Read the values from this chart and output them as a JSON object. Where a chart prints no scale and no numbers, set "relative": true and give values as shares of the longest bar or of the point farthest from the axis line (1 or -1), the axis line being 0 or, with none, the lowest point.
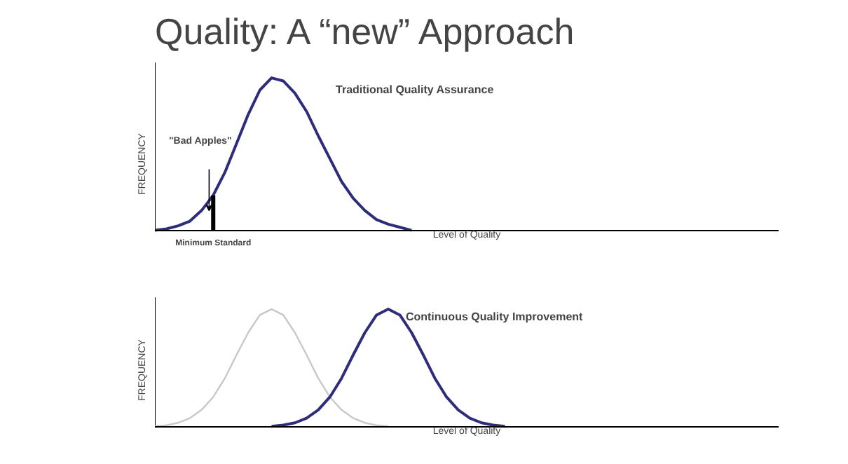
{
  "chart_data": [
    {
      "type": "line",
      "title": "Quality:  A “new” Approach",
      "xlabel": "Level of Quality",
      "ylabel": "FREQUENCY",
      "relative": true,
      "categories": [
        null,
        null,
        null,
        null,
        null,
        null,
        null,
        null,
        null,
        null,
        null,
        null,
        null,
        null,
        null,
        null,
        null,
        null,
        null,
        null,
        null,
        null,
        null,
        null,
        null,
        null,
        null,
        null,
        null,
        null,
        null,
        null,
        null,
        null
      ],
      "series": [
        {
          "color": "#2e2d7c",
          "values": [
            0,
            0.01,
            0.03,
            0.06,
            0.13,
            0.23,
            0.38,
            0.57,
            0.76,
            0.92,
            1,
            0.98,
            0.9,
            0.78,
            0.62,
            0.47,
            0.32,
            0.21,
            0.13,
            0.07,
            0.04,
            0.02,
            0,
            null,
            null,
            null,
            null,
            null,
            null,
            null,
            null,
            null,
            null,
            null
          ]
        }
      ],
      "annotations": [
        "Traditional Quality Assurance",
        "\"Bad Apples\"",
        "Minimum Standard"
      ]
    },
    {
      "type": "line",
      "xlabel": "Level of Quality",
      "ylabel": "FREQUENCY",
      "relative": true,
      "categories": [
        null,
        null,
        null,
        null,
        null,
        null,
        null,
        null,
        null,
        null,
        null,
        null,
        null,
        null,
        null,
        null,
        null,
        null,
        null,
        null,
        null,
        null,
        null,
        null,
        null,
        null,
        null,
        null,
        null,
        null,
        null,
        null,
        null,
        null
      ],
      "series": [
        {
          "color": "#c8c8c8",
          "values": [
            0,
            0.01,
            0.03,
            0.07,
            0.14,
            0.25,
            0.41,
            0.61,
            0.8,
            0.95,
            1,
            0.95,
            0.8,
            0.61,
            0.41,
            0.25,
            0.14,
            0.07,
            0.03,
            0.01,
            0,
            null,
            null,
            null,
            null,
            null,
            null,
            null,
            null,
            null,
            null,
            null,
            null,
            null
          ]
        },
        {
          "color": "#2e2d7c",
          "values": [
            null,
            null,
            null,
            null,
            null,
            null,
            null,
            null,
            null,
            null,
            0,
            0.01,
            0.03,
            0.07,
            0.14,
            0.25,
            0.41,
            0.61,
            0.8,
            0.95,
            1,
            0.95,
            0.8,
            0.61,
            0.41,
            0.25,
            0.14,
            0.07,
            0.03,
            0.01,
            0,
            null,
            null,
            null
          ]
        }
      ],
      "annotations": [
        "Continuous Quality Improvement"
      ]
    }
  ]
}
